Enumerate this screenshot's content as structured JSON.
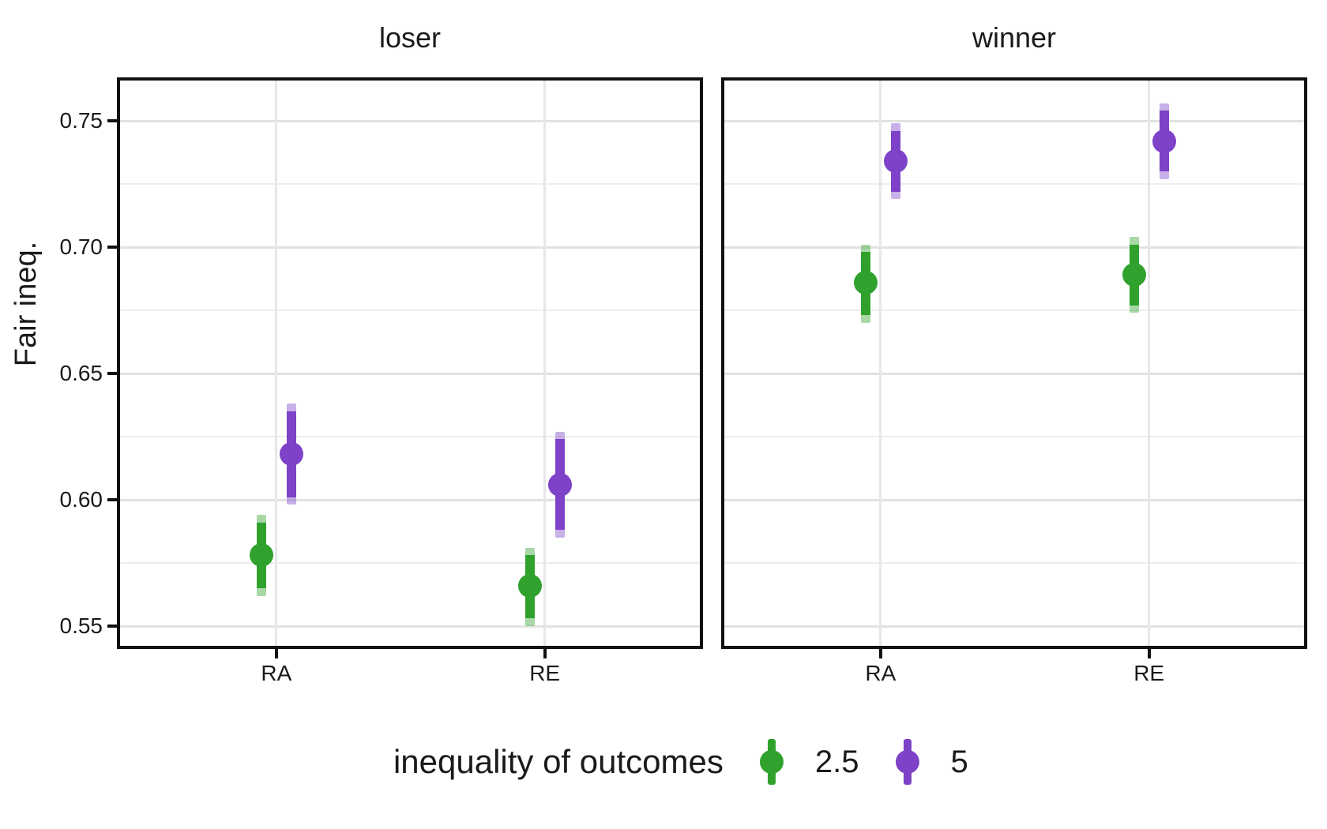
{
  "figure": {
    "background": "#ffffff",
    "y_axis_title": "Fair ineq.",
    "legend": {
      "title": "inequality of outcomes",
      "position": "bottom",
      "items": [
        {
          "label": "2.5",
          "color": "#2fa12c"
        },
        {
          "label": "5",
          "color": "#7d42c7"
        }
      ]
    }
  },
  "chart_data": {
    "type": "scatter",
    "subtype": "point-interval, dodged, faceted",
    "title": "",
    "xlabel": "",
    "ylabel": "Fair ineq.",
    "ylim": [
      0.541,
      0.767
    ],
    "grid": true,
    "legend_position": "bottom",
    "categories": [
      "RA",
      "RE"
    ],
    "y_ticks": [
      {
        "value": 0.55,
        "label": "0.55"
      },
      {
        "value": 0.6,
        "label": "0.60"
      },
      {
        "value": 0.65,
        "label": "0.65"
      },
      {
        "value": 0.7,
        "label": "0.70"
      },
      {
        "value": 0.75,
        "label": "0.75"
      }
    ],
    "y_minor_gridlines": [
      0.575,
      0.625,
      0.675,
      0.725
    ],
    "series_colors": {
      "2.5": "#2fa12c",
      "5": "#7d42c7"
    },
    "facets": [
      {
        "label": "loser",
        "series": [
          {
            "name": "2.5",
            "color": "#2fa12c",
            "points": [
              {
                "x": "RA",
                "y": 0.578,
                "outer_lo": 0.562,
                "outer_hi": 0.594,
                "inner_lo": 0.565,
                "inner_hi": 0.591
              },
              {
                "x": "RE",
                "y": 0.566,
                "outer_lo": 0.55,
                "outer_hi": 0.581,
                "inner_lo": 0.553,
                "inner_hi": 0.578
              }
            ]
          },
          {
            "name": "5",
            "color": "#7d42c7",
            "points": [
              {
                "x": "RA",
                "y": 0.618,
                "outer_lo": 0.598,
                "outer_hi": 0.638,
                "inner_lo": 0.601,
                "inner_hi": 0.635
              },
              {
                "x": "RE",
                "y": 0.606,
                "outer_lo": 0.585,
                "outer_hi": 0.627,
                "inner_lo": 0.588,
                "inner_hi": 0.624
              }
            ]
          }
        ]
      },
      {
        "label": "winner",
        "series": [
          {
            "name": "2.5",
            "color": "#2fa12c",
            "points": [
              {
                "x": "RA",
                "y": 0.686,
                "outer_lo": 0.67,
                "outer_hi": 0.701,
                "inner_lo": 0.673,
                "inner_hi": 0.698
              },
              {
                "x": "RE",
                "y": 0.689,
                "outer_lo": 0.674,
                "outer_hi": 0.704,
                "inner_lo": 0.677,
                "inner_hi": 0.701
              }
            ]
          },
          {
            "name": "5",
            "color": "#7d42c7",
            "points": [
              {
                "x": "RA",
                "y": 0.734,
                "outer_lo": 0.719,
                "outer_hi": 0.749,
                "inner_lo": 0.722,
                "inner_hi": 0.746
              },
              {
                "x": "RE",
                "y": 0.742,
                "outer_lo": 0.727,
                "outer_hi": 0.757,
                "inner_lo": 0.73,
                "inner_hi": 0.754
              }
            ]
          }
        ]
      }
    ]
  }
}
